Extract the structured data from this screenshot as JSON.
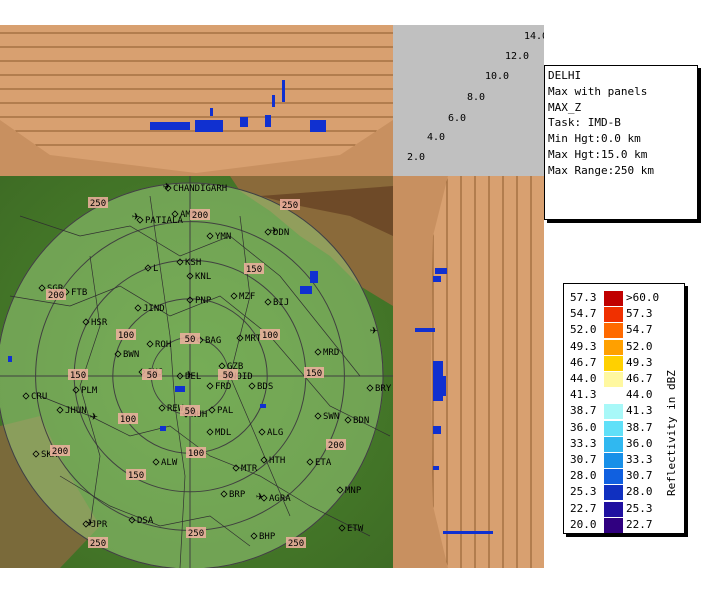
{
  "info": {
    "station": "DELHI",
    "product": "Max with panels",
    "field": "MAX_Z",
    "task": "Task: IMD-B",
    "min_hgt": "Min Hgt:0.0 km",
    "max_hgt": "Max Hgt:15.0 km",
    "max_range": "Max Range:250 km"
  },
  "height_labels": [
    "14.0",
    "12.0",
    "10.0",
    "8.0",
    "6.0",
    "4.0",
    "2.0"
  ],
  "legend": {
    "title": "Reflectivity in dBZ",
    "rows": [
      {
        "lo": "57.3",
        "hi": ">60.0",
        "color": "#c00000"
      },
      {
        "lo": "54.7",
        "hi": "57.3",
        "color": "#f03000"
      },
      {
        "lo": "52.0",
        "hi": "54.7",
        "color": "#ff6a00"
      },
      {
        "lo": "49.3",
        "hi": "52.0",
        "color": "#ffa000"
      },
      {
        "lo": "46.7",
        "hi": "49.3",
        "color": "#ffd000"
      },
      {
        "lo": "44.0",
        "hi": "46.7",
        "color": "#fff8a0"
      },
      {
        "lo": "41.3",
        "hi": "44.0",
        "color": "#ffffff"
      },
      {
        "lo": "38.7",
        "hi": "41.3",
        "color": "#a8f8f8"
      },
      {
        "lo": "36.0",
        "hi": "38.7",
        "color": "#60e0f8"
      },
      {
        "lo": "33.3",
        "hi": "36.0",
        "color": "#30b8f0"
      },
      {
        "lo": "30.7",
        "hi": "33.3",
        "color": "#1890e8"
      },
      {
        "lo": "28.0",
        "hi": "30.7",
        "color": "#1060e0"
      },
      {
        "lo": "25.3",
        "hi": "28.0",
        "color": "#1030c0"
      },
      {
        "lo": "22.7",
        "hi": "25.3",
        "color": "#2010a0"
      },
      {
        "lo": "20.0",
        "hi": "22.7",
        "color": "#300080"
      }
    ]
  },
  "range_labels": [
    "50",
    "100",
    "150",
    "200",
    "250"
  ],
  "cities": [
    {
      "name": "CHANDIGARH"
    },
    {
      "name": "PATIALA"
    },
    {
      "name": "AMB"
    },
    {
      "name": "DDN"
    },
    {
      "name": "KSH"
    },
    {
      "name": "YMN"
    },
    {
      "name": "KNL"
    },
    {
      "name": "L"
    },
    {
      "name": "SGR"
    },
    {
      "name": "FTB"
    },
    {
      "name": "JIND"
    },
    {
      "name": "PNP"
    },
    {
      "name": "MZF"
    },
    {
      "name": "BIJ"
    },
    {
      "name": "HSR"
    },
    {
      "name": "BAG"
    },
    {
      "name": "MRT"
    },
    {
      "name": "MRD"
    },
    {
      "name": "BWN"
    },
    {
      "name": "ROH"
    },
    {
      "name": "JHJ"
    },
    {
      "name": "GZB"
    },
    {
      "name": "NOID"
    },
    {
      "name": "FRD"
    },
    {
      "name": "BDS"
    },
    {
      "name": "BRY"
    },
    {
      "name": "CRU"
    },
    {
      "name": "PLM"
    },
    {
      "name": "JHUN"
    },
    {
      "name": "REW"
    },
    {
      "name": "NUH"
    },
    {
      "name": "PAL"
    },
    {
      "name": "SWN"
    },
    {
      "name": "BDN"
    },
    {
      "name": "ALG"
    },
    {
      "name": "SKR"
    },
    {
      "name": "HTH"
    },
    {
      "name": "ETA"
    },
    {
      "name": "ALW"
    },
    {
      "name": "MTR"
    },
    {
      "name": "BRP"
    },
    {
      "name": "AGRA"
    },
    {
      "name": "MNP"
    },
    {
      "name": "JPR"
    },
    {
      "name": "DSA"
    },
    {
      "name": "BHP"
    },
    {
      "name": "ETW"
    },
    {
      "name": "MDL"
    },
    {
      "name": "DEL"
    }
  ]
}
